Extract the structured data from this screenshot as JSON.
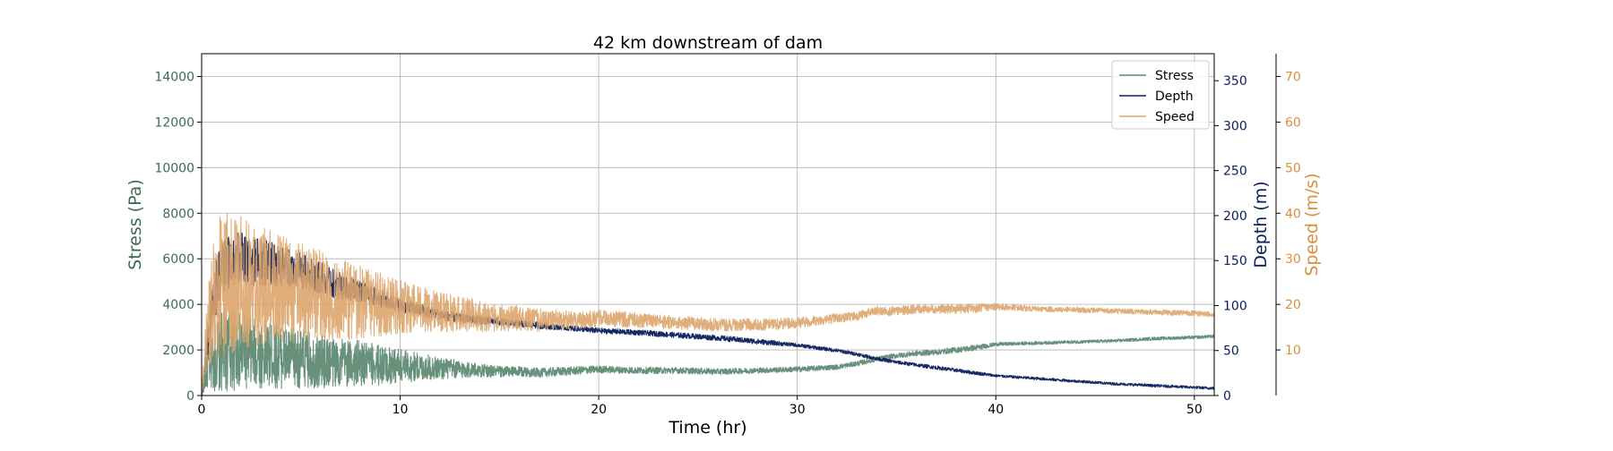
{
  "chart_data": {
    "type": "line",
    "title": "42 km downstream of dam",
    "xlabel": "Time (hr)",
    "xlim": [
      0,
      51
    ],
    "xticks": [
      0,
      10,
      20,
      30,
      40,
      50
    ],
    "grid": true,
    "legend_position": "top-right",
    "axes": [
      {
        "id": "stress",
        "side": "left",
        "label": "Stress (Pa)",
        "color": "#3d6b52",
        "ylim": [
          0,
          15000
        ],
        "ticks": [
          0,
          2000,
          4000,
          6000,
          8000,
          10000,
          12000,
          14000
        ]
      },
      {
        "id": "depth",
        "side": "right",
        "label": "Depth (m)",
        "color": "#0b1f5c",
        "ylim": [
          0,
          380
        ],
        "ticks": [
          0,
          50,
          100,
          150,
          200,
          250,
          300,
          350
        ]
      },
      {
        "id": "speed",
        "side": "right-outer",
        "label": "Speed (m/s)",
        "color": "#d88f3f",
        "ylim": [
          0,
          75
        ],
        "ticks": [
          10,
          20,
          30,
          40,
          50,
          60,
          70
        ]
      }
    ],
    "series": [
      {
        "name": "Stress",
        "axis": "stress",
        "color": "#5f8b74",
        "x": [
          0,
          0.3,
          0.6,
          1,
          1.5,
          2,
          2.5,
          3,
          4,
          5,
          6,
          7,
          8,
          9,
          10,
          11,
          12,
          13,
          14,
          15,
          16,
          17,
          18,
          19,
          20,
          22,
          24,
          26,
          28,
          30,
          32,
          33,
          34,
          35,
          36,
          37,
          38,
          39,
          40,
          42,
          44,
          46,
          48,
          50,
          51
        ],
        "y": [
          0,
          1200,
          1700,
          1900,
          2000,
          1900,
          1850,
          1800,
          1700,
          1600,
          1500,
          1450,
          1400,
          1350,
          1300,
          1250,
          1200,
          1150,
          1100,
          1050,
          1050,
          1000,
          1050,
          1100,
          1150,
          1100,
          1100,
          1050,
          1100,
          1150,
          1250,
          1400,
          1600,
          1750,
          1850,
          1900,
          2000,
          2100,
          2250,
          2300,
          2350,
          2400,
          2500,
          2550,
          2600
        ],
        "noise": [
          0,
          900,
          1500,
          1800,
          1800,
          1700,
          1600,
          1500,
          1400,
          1300,
          1200,
          1100,
          1000,
          900,
          800,
          600,
          500,
          400,
          300,
          250,
          220,
          200,
          200,
          180,
          160,
          150,
          140,
          130,
          120,
          120,
          110,
          110,
          110,
          110,
          120,
          120,
          130,
          130,
          80,
          70,
          70,
          70,
          70,
          70,
          70
        ]
      },
      {
        "name": "Depth",
        "axis": "depth",
        "color": "#0b1f5c",
        "x": [
          0,
          0.3,
          0.6,
          1,
          1.5,
          2,
          2.5,
          3,
          4,
          5,
          6,
          7,
          8,
          9,
          10,
          11,
          12,
          13,
          14,
          15,
          16,
          17,
          18,
          19,
          20,
          22,
          24,
          26,
          28,
          30,
          32,
          33,
          34,
          35,
          36,
          37,
          38,
          39,
          40,
          42,
          44,
          46,
          48,
          50,
          51
        ],
        "y": [
          0,
          60,
          110,
          140,
          150,
          152,
          150,
          148,
          143,
          138,
          130,
          122,
          115,
          108,
          100,
          95,
          90,
          86,
          84,
          82,
          80,
          78,
          76,
          74,
          72,
          70,
          67,
          64,
          60,
          56,
          50,
          46,
          41,
          37,
          34,
          31,
          28,
          25,
          22,
          19,
          16,
          13,
          11,
          9,
          8
        ],
        "noise": [
          0,
          20,
          30,
          32,
          30,
          30,
          28,
          26,
          24,
          20,
          18,
          15,
          12,
          10,
          8,
          7,
          6,
          5,
          5,
          4,
          4,
          4,
          3,
          3,
          3,
          3,
          3,
          3,
          3,
          2,
          2,
          2,
          2,
          2,
          2,
          2,
          2,
          2,
          1.5,
          1.5,
          1.5,
          1.5,
          1.5,
          1.5,
          1.5
        ]
      },
      {
        "name": "Speed",
        "axis": "speed",
        "color": "#dba56c",
        "x": [
          0,
          0.3,
          0.6,
          1,
          1.5,
          2,
          2.5,
          3,
          4,
          5,
          6,
          7,
          8,
          9,
          10,
          11,
          12,
          13,
          14,
          15,
          16,
          17,
          18,
          19,
          20,
          22,
          24,
          26,
          28,
          30,
          32,
          33,
          34,
          35,
          36,
          37,
          38,
          39,
          40,
          42,
          44,
          46,
          48,
          50,
          51
        ],
        "y": [
          0,
          14,
          22,
          24,
          25,
          25,
          24.5,
          24,
          23.5,
          22.5,
          22,
          21,
          20.5,
          20,
          19.5,
          19,
          18.5,
          18,
          17.5,
          17,
          17,
          16.5,
          16.5,
          16.5,
          17,
          16.5,
          16,
          15.5,
          15.5,
          16,
          17,
          17.5,
          18.5,
          18.5,
          19,
          19,
          19,
          19.2,
          19.5,
          19,
          18.8,
          18.6,
          18.3,
          18,
          17.8
        ],
        "noise": [
          0,
          10,
          14,
          16,
          16,
          15,
          14,
          13,
          12,
          11,
          10,
          9,
          8,
          7,
          6,
          5,
          4.5,
          4,
          3.5,
          3,
          2.8,
          2.5,
          2.2,
          2,
          1.8,
          1.6,
          1.5,
          1.4,
          1.3,
          1.2,
          1.1,
          1,
          1,
          1,
          1,
          1,
          1,
          1,
          0.8,
          0.6,
          0.6,
          0.6,
          0.6,
          0.6,
          0.6
        ]
      }
    ]
  }
}
